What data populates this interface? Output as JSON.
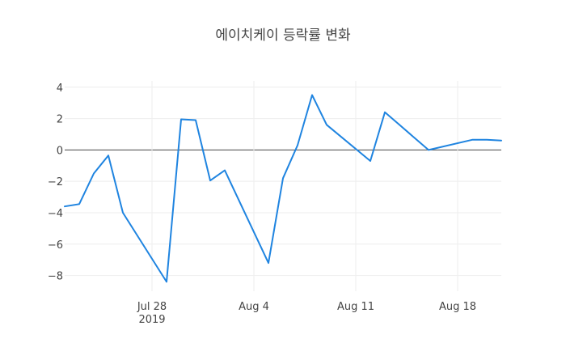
{
  "chart_data": {
    "type": "line",
    "title": "에이치케이 등락률 변화",
    "xlabel": "",
    "ylabel": "",
    "x": [
      "2019-07-22",
      "2019-07-23",
      "2019-07-24",
      "2019-07-25",
      "2019-07-26",
      "2019-07-29",
      "2019-07-30",
      "2019-07-31",
      "2019-08-01",
      "2019-08-02",
      "2019-08-05",
      "2019-08-06",
      "2019-08-07",
      "2019-08-08",
      "2019-08-09",
      "2019-08-12",
      "2019-08-13",
      "2019-08-14",
      "2019-08-16",
      "2019-08-19",
      "2019-08-20",
      "2019-08-21"
    ],
    "series": [
      {
        "name": "",
        "color": "#1f84e0",
        "values": [
          -3.6,
          -3.45,
          -1.5,
          -0.35,
          -4.0,
          -8.4,
          1.95,
          1.9,
          -1.95,
          -1.3,
          -7.2,
          -1.8,
          0.3,
          3.5,
          1.6,
          -0.7,
          2.4,
          1.6,
          0.0,
          0.65,
          0.65,
          0.6
        ]
      }
    ],
    "xlim": [
      "2019-07-22",
      "2019-08-21"
    ],
    "ylim": [
      -9,
      4.4
    ],
    "x_ticks": [
      {
        "date": "2019-07-28",
        "label": "Jul 28",
        "sublabel": "2019"
      },
      {
        "date": "2019-08-04",
        "label": "Aug 4",
        "sublabel": ""
      },
      {
        "date": "2019-08-11",
        "label": "Aug 11",
        "sublabel": ""
      },
      {
        "date": "2019-08-18",
        "label": "Aug 18",
        "sublabel": ""
      }
    ],
    "y_ticks": [
      {
        "value": 4,
        "label": "4"
      },
      {
        "value": 2,
        "label": "2"
      },
      {
        "value": 0,
        "label": "0"
      },
      {
        "value": -2,
        "label": "−2"
      },
      {
        "value": -4,
        "label": "−4"
      },
      {
        "value": -6,
        "label": "−6"
      },
      {
        "value": -8,
        "label": "−8"
      }
    ],
    "grid": true,
    "zero_line": true
  }
}
